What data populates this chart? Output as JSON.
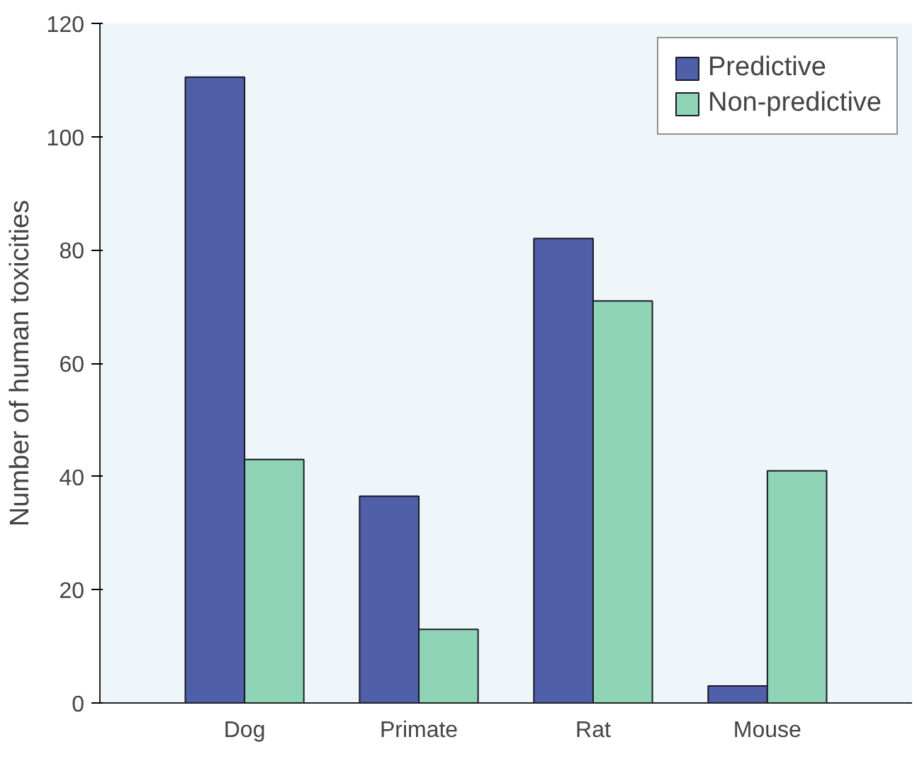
{
  "chart_data": {
    "type": "bar",
    "ylabel": "Number of human toxicities",
    "categories": [
      "Dog",
      "Primate",
      "Rat",
      "Mouse"
    ],
    "series": [
      {
        "name": "Predictive",
        "color": "#4f5fa8",
        "values": [
          110.5,
          36.5,
          82,
          3
        ]
      },
      {
        "name": "Non-predictive",
        "color": "#8fd4b6",
        "values": [
          43,
          13,
          71,
          41
        ]
      }
    ],
    "ylim": [
      0,
      120
    ],
    "yticks": [
      0,
      20,
      40,
      60,
      80,
      100,
      120
    ],
    "grid": false,
    "legend": "top right"
  }
}
